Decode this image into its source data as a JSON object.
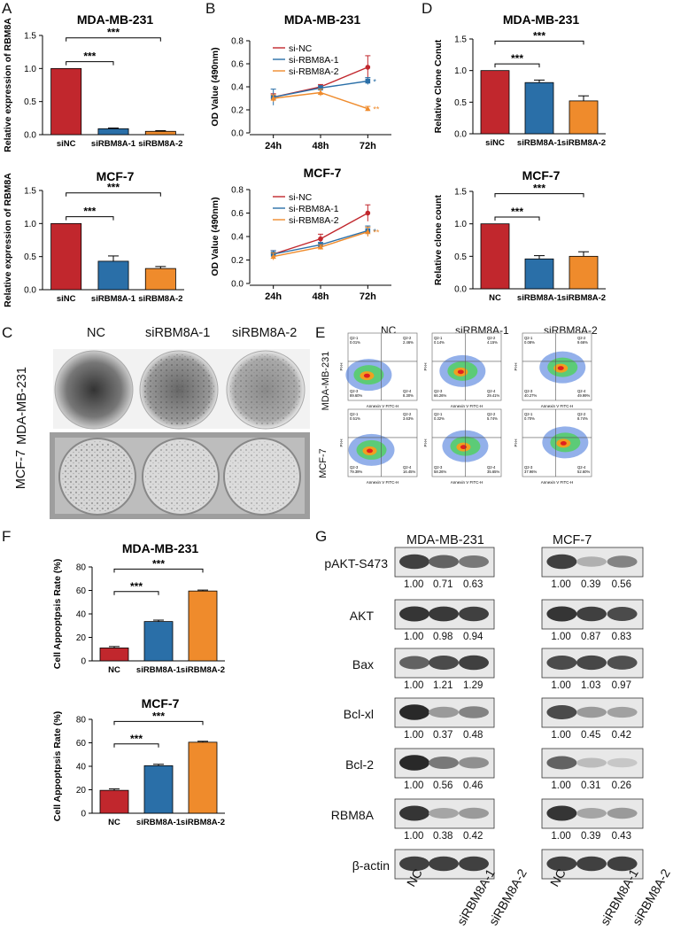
{
  "panels": {
    "A": "A",
    "B": "B",
    "C": "C",
    "D": "D",
    "E": "E",
    "F": "F",
    "G": "G"
  },
  "colors": {
    "red": "#c1272d",
    "blue": "#2a6fa8",
    "orange": "#ef8b2c"
  },
  "chart_data": [
    {
      "id": "A1",
      "type": "bar",
      "title": "MDA-MB-231",
      "ylabel": "Relative expression of RBM8A",
      "categories": [
        "siNC",
        "siRBM8A-1",
        "siRBM8A-2"
      ],
      "values": [
        1.0,
        0.09,
        0.05
      ],
      "errors": [
        0,
        0.01,
        0.01
      ],
      "ylim": [
        0,
        1.5
      ],
      "yticks": [
        "0.0",
        "0.5",
        "1.0",
        "1.5"
      ],
      "tickvals": [
        0,
        0.5,
        1.0,
        1.5
      ],
      "sig": [
        "***",
        "***"
      ]
    },
    {
      "id": "A2",
      "type": "bar",
      "title": "MCF-7",
      "ylabel": "Relative expression of RBM8A",
      "categories": [
        "siNC",
        "siRBM8A-1",
        "siRBM8A-2"
      ],
      "values": [
        1.0,
        0.43,
        0.32
      ],
      "errors": [
        0,
        0.08,
        0.03
      ],
      "ylim": [
        0,
        1.5
      ],
      "yticks": [
        "0.0",
        "0.5",
        "1.0",
        "1.5"
      ],
      "tickvals": [
        0,
        0.5,
        1.0,
        1.5
      ],
      "sig": [
        "***",
        "***"
      ]
    },
    {
      "id": "B1",
      "type": "line",
      "title": "MDA-MB-231",
      "ylabel": "OD Value (490nm)",
      "x": [
        "24h",
        "48h",
        "72h"
      ],
      "ylim": [
        0,
        0.8
      ],
      "yticks": [
        "0.0",
        "0.2",
        "0.4",
        "0.6",
        "0.8"
      ],
      "tickvals": [
        0,
        0.2,
        0.4,
        0.6,
        0.8
      ],
      "series": [
        {
          "name": "si-NC",
          "values": [
            0.31,
            0.4,
            0.57
          ],
          "errors": [
            0.03,
            0.02,
            0.1
          ]
        },
        {
          "name": "si-RBM8A-1",
          "values": [
            0.31,
            0.39,
            0.45
          ],
          "errors": [
            0.07,
            0.02,
            0.03
          ],
          "sig": "*"
        },
        {
          "name": "si-RBM8A-2",
          "values": [
            0.3,
            0.35,
            0.21
          ],
          "errors": [
            0.03,
            0.03,
            0.02
          ],
          "sig": "**"
        }
      ]
    },
    {
      "id": "B2",
      "type": "line",
      "title": "MCF-7",
      "ylabel": "OD Value (490nm)",
      "x": [
        "24h",
        "48h",
        "72h"
      ],
      "ylim": [
        0,
        0.8
      ],
      "yticks": [
        "0.0",
        "0.2",
        "0.4",
        "0.6",
        "0.8"
      ],
      "tickvals": [
        0,
        0.2,
        0.4,
        0.6,
        0.8
      ],
      "series": [
        {
          "name": "si-NC",
          "values": [
            0.25,
            0.38,
            0.6
          ],
          "errors": [
            0.03,
            0.04,
            0.07
          ]
        },
        {
          "name": "si-RBM8A-1",
          "values": [
            0.25,
            0.33,
            0.45
          ],
          "errors": [
            0.03,
            0.02,
            0.04
          ],
          "sig": "*"
        },
        {
          "name": "si-RBM8A-2",
          "values": [
            0.23,
            0.31,
            0.44
          ],
          "errors": [
            0.03,
            0.02,
            0.04
          ],
          "sig": "**"
        }
      ]
    },
    {
      "id": "D1",
      "type": "bar",
      "title": "MDA-MB-231",
      "ylabel": "Relative Clone Conut",
      "categories": [
        "siNC",
        "siRBM8A-1",
        "siRBM8A-2"
      ],
      "values": [
        1.0,
        0.81,
        0.52
      ],
      "errors": [
        0,
        0.04,
        0.08
      ],
      "ylim": [
        0,
        1.5
      ],
      "yticks": [
        "0.0",
        "0.5",
        "1.0",
        "1.5"
      ],
      "tickvals": [
        0,
        0.5,
        1.0,
        1.5
      ],
      "sig": [
        "***",
        "***"
      ]
    },
    {
      "id": "D2",
      "type": "bar",
      "title": "MCF-7",
      "ylabel": "Relative clone count",
      "categories": [
        "NC",
        "siRBM8A-1",
        "siRBM8A-2"
      ],
      "values": [
        1.0,
        0.46,
        0.5
      ],
      "errors": [
        0,
        0.05,
        0.07
      ],
      "ylim": [
        0,
        1.5
      ],
      "yticks": [
        "0.0",
        "0.5",
        "1.0",
        "1.5"
      ],
      "tickvals": [
        0,
        0.5,
        1.0,
        1.5
      ],
      "sig": [
        "***",
        "***"
      ]
    },
    {
      "id": "F1",
      "type": "bar",
      "title": "MDA-MB-231",
      "ylabel": "Cell Appoptpsis Rate (%)",
      "categories": [
        "NC",
        "siRBM8A-1",
        "siRBM8A-2"
      ],
      "values": [
        11,
        33.5,
        59.5
      ],
      "errors": [
        1.2,
        1.2,
        0.8
      ],
      "ylim": [
        0,
        80
      ],
      "yticks": [
        "0",
        "20",
        "40",
        "60",
        "80"
      ],
      "tickvals": [
        0,
        20,
        40,
        60,
        80
      ],
      "sig": [
        "***",
        "***"
      ]
    },
    {
      "id": "F2",
      "type": "bar",
      "title": "MCF-7",
      "ylabel": "Cell Appoptpsis Rate (%)",
      "categories": [
        "NC",
        "siRBM8A-1",
        "siRBM8A-2"
      ],
      "values": [
        19.5,
        40.5,
        60.5
      ],
      "errors": [
        1.2,
        1.2,
        0.8
      ],
      "ylim": [
        0,
        80
      ],
      "yticks": [
        "0",
        "20",
        "40",
        "60",
        "80"
      ],
      "tickvals": [
        0,
        20,
        40,
        60,
        80
      ],
      "sig": [
        "***",
        "***"
      ]
    }
  ],
  "colony": {
    "cols": [
      "NC",
      "siRBM8A-1",
      "siRBM8A-2"
    ],
    "rows": [
      "MDA-MB-231",
      "MCF-7"
    ]
  },
  "flow": {
    "cols": [
      "NC",
      "siRBM8A-1",
      "siRBM8A-2"
    ],
    "rows": [
      "MDA-MB-231",
      "MCF-7"
    ],
    "ylabel": "PI-H",
    "xlabel": "Annexin V FITC-H",
    "q": [
      [
        [
          "Q2-1",
          "0.01%",
          "Q2-2",
          "2.46%",
          "Q2-3",
          "89.60%",
          "Q2-4",
          "8.30%"
        ],
        [
          "Q2-1",
          "0.14%",
          "Q2-2",
          "4.15%",
          "Q2-3",
          "66.26%",
          "Q2-4",
          "29.41%"
        ],
        [
          "Q2-1",
          "0.08%",
          "Q2-2",
          "9.66%",
          "Q2-3",
          "40.27%",
          "Q2-4",
          "49.99%"
        ]
      ],
      [
        [
          "Q2-1",
          "0.51%",
          "Q2-2",
          "3.63%",
          "Q2-3",
          "79.39%",
          "Q2-4",
          "16.45%"
        ],
        [
          "Q2-1",
          "0.32%",
          "Q2-2",
          "5.74%",
          "Q2-3",
          "58.26%",
          "Q2-4",
          "35.65%"
        ],
        [
          "Q2-1",
          "0.70%",
          "Q2-2",
          "8.74%",
          "Q2-3",
          "37.96%",
          "Q2-4",
          "52.60%"
        ]
      ]
    ]
  },
  "western": {
    "groups": [
      "MDA-MB-231",
      "MCF-7"
    ],
    "lanes": [
      "NC",
      "siRBM8A-1",
      "siRBM8A-2"
    ],
    "proteins": [
      {
        "name": "pAKT-S473",
        "mda": [
          "1.00",
          "0.71",
          "0.63"
        ],
        "mcf": [
          "1.00",
          "0.39",
          "0.56"
        ],
        "mdaI": [
          0.85,
          0.7,
          0.6
        ],
        "mcfI": [
          0.85,
          0.35,
          0.55
        ]
      },
      {
        "name": "AKT",
        "mda": [
          "1.00",
          "0.98",
          "0.94"
        ],
        "mcf": [
          "1.00",
          "0.87",
          "0.83"
        ],
        "mdaI": [
          0.9,
          0.88,
          0.85
        ],
        "mcfI": [
          0.9,
          0.85,
          0.8
        ]
      },
      {
        "name": "Bax",
        "mda": [
          "1.00",
          "1.21",
          "1.29"
        ],
        "mcf": [
          "1.00",
          "1.03",
          "0.97"
        ],
        "mdaI": [
          0.7,
          0.8,
          0.85
        ],
        "mcfI": [
          0.8,
          0.82,
          0.78
        ]
      },
      {
        "name": "Bcl-xl",
        "mda": [
          "1.00",
          "0.37",
          "0.48"
        ],
        "mcf": [
          "1.00",
          "0.45",
          "0.42"
        ],
        "mdaI": [
          0.95,
          0.45,
          0.55
        ],
        "mcfI": [
          0.8,
          0.45,
          0.42
        ]
      },
      {
        "name": "Bcl-2",
        "mda": [
          "1.00",
          "0.56",
          "0.46"
        ],
        "mcf": [
          "1.00",
          "0.31",
          "0.26"
        ],
        "mdaI": [
          0.95,
          0.6,
          0.5
        ],
        "mcfI": [
          0.7,
          0.3,
          0.25
        ]
      },
      {
        "name": "RBM8A",
        "mda": [
          "1.00",
          "0.38",
          "0.42"
        ],
        "mcf": [
          "1.00",
          "0.39",
          "0.43"
        ],
        "mdaI": [
          0.9,
          0.4,
          0.45
        ],
        "mcfI": [
          0.9,
          0.4,
          0.45
        ]
      },
      {
        "name": "β-actin",
        "mda": [],
        "mcf": [],
        "mdaI": [
          0.85,
          0.85,
          0.85
        ],
        "mcfI": [
          0.85,
          0.85,
          0.85
        ]
      }
    ]
  }
}
